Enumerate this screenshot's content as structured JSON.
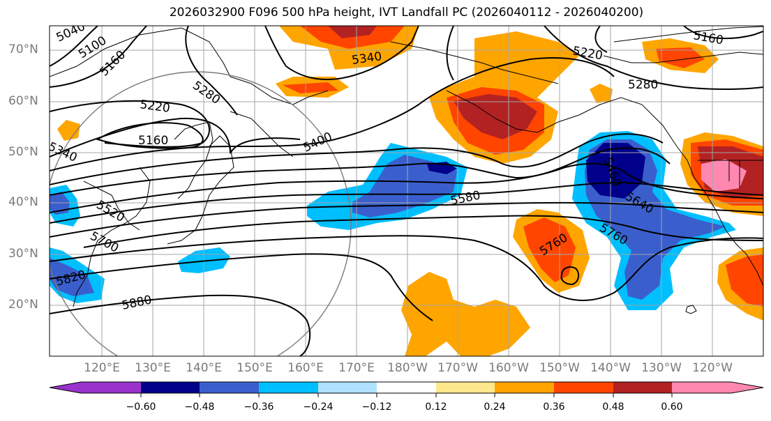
{
  "title": "2026032900 F096 500 hPa height, IVT Landfall PC (2026040112 - 2026040200)",
  "lat_labels": [
    "70°N",
    "60°N",
    "50°N",
    "40°N",
    "30°N",
    "20°N"
  ],
  "lon_labels": [
    "120°E",
    "130°E",
    "140°E",
    "150°E",
    "160°E",
    "170°E",
    "180°W",
    "170°W",
    "160°W",
    "150°W",
    "140°W",
    "130°W",
    "120°W"
  ],
  "contour_labels": [
    "5040",
    "5100",
    "5160",
    "5220",
    "5280",
    "5160",
    "5340",
    "5340",
    "5400",
    "5160",
    "5220",
    "5280",
    "5460",
    "5520",
    "5580",
    "5640",
    "5700",
    "5760",
    "5760",
    "5820",
    "5880"
  ],
  "colorbar": {
    "tick_labels": [
      "−0.60",
      "−0.48",
      "−0.36",
      "−0.24",
      "−0.12",
      "0.12",
      "0.24",
      "0.36",
      "0.48",
      "0.60"
    ],
    "colors": [
      "#9933cc",
      "#00008b",
      "#3a5fcd",
      "#00bfff",
      "#b0e2ff",
      "#ffffff",
      "#ffe88c",
      "#ffa500",
      "#ff4500",
      "#b22222",
      "#ff88b0",
      "#ff88b0"
    ]
  }
}
